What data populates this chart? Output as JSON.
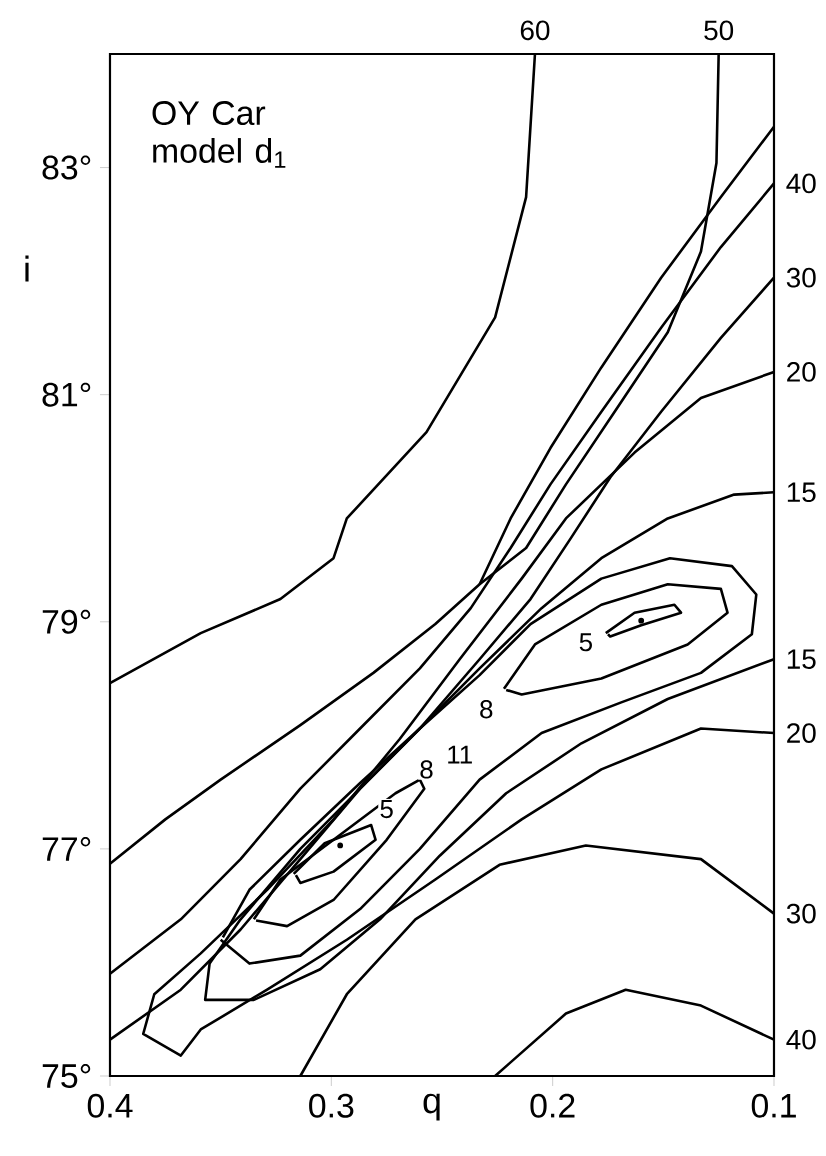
{
  "chart_data": {
    "type": "line",
    "title": "OY Car model d$_{1}$",
    "xlabel": "q",
    "ylabel": "i",
    "xlim": [
      0.4,
      0.1
    ],
    "ylim": [
      75,
      84
    ],
    "xticks": [
      0.4,
      0.3,
      0.2,
      0.1
    ],
    "yticks": [
      {
        "value": 75,
        "label": "75°"
      },
      {
        "value": 77,
        "label": "77°"
      },
      {
        "value": 79,
        "label": "79°"
      },
      {
        "value": 81,
        "label": "81°"
      },
      {
        "value": 83,
        "label": "83°"
      }
    ],
    "series": [
      {
        "color": "#000000",
        "x": [
          0.208,
          0.212,
          0.226,
          0.257,
          0.293,
          0.299,
          0.323,
          0.359,
          0.4
        ],
        "values": [
          84.0,
          82.74,
          81.68,
          80.67,
          79.91,
          79.56,
          79.2,
          78.9,
          78.46
        ]
      },
      {
        "color": "#000000",
        "x": [
          0.125,
          0.126,
          0.133,
          0.148,
          0.172,
          0.194,
          0.212,
          0.233,
          0.253,
          0.281,
          0.314,
          0.35,
          0.375,
          0.4
        ],
        "values": [
          84.0,
          83.04,
          82.26,
          81.55,
          80.85,
          80.21,
          79.65,
          79.33,
          78.98,
          78.55,
          78.09,
          77.61,
          77.26,
          76.87
        ]
      },
      {
        "color": "#000000",
        "x": [
          0.1,
          0.124,
          0.151,
          0.178,
          0.201,
          0.219,
          0.233
        ],
        "values": [
          83.36,
          82.74,
          82.03,
          81.24,
          80.53,
          79.91,
          79.33
        ]
      },
      {
        "color": "#000000",
        "x": [
          0.1,
          0.124,
          0.151,
          0.178,
          0.201,
          0.219,
          0.237,
          0.26,
          0.287,
          0.314,
          0.341,
          0.368,
          0.4
        ],
        "values": [
          82.86,
          82.3,
          81.59,
          80.85,
          80.21,
          79.65,
          79.12,
          78.59,
          78.06,
          77.53,
          76.91,
          76.38,
          75.9
        ]
      },
      {
        "color": "#000000",
        "x": [
          0.1,
          0.124,
          0.151,
          0.174,
          0.192,
          0.21,
          0.233,
          0.26,
          0.287,
          0.314,
          0.341,
          0.368,
          0.4
        ],
        "values": [
          82.03,
          81.5,
          80.85,
          80.27,
          79.73,
          79.2,
          78.67,
          78.06,
          77.53,
          76.91,
          76.29,
          75.76,
          75.32
        ]
      },
      {
        "color": "#000000",
        "x": [
          0.1,
          0.133,
          0.163,
          0.194,
          0.214,
          0.242,
          0.269,
          0.299,
          0.329,
          0.359,
          0.38,
          0.385,
          0.368,
          0.359,
          0.329,
          0.293,
          0.253,
          0.214,
          0.178,
          0.133,
          0.1
        ],
        "values": [
          81.2,
          80.97,
          80.49,
          79.91,
          79.38,
          78.67,
          77.97,
          77.26,
          76.64,
          76.08,
          75.72,
          75.37,
          75.18,
          75.41,
          75.76,
          76.2,
          76.73,
          77.26,
          77.7,
          78.06,
          78.02
        ]
      },
      {
        "color": "#000000",
        "x": [
          0.1,
          0.118,
          0.148,
          0.178,
          0.205,
          0.233,
          0.26,
          0.287,
          0.314,
          0.341,
          0.355,
          0.357,
          0.335,
          0.305,
          0.278,
          0.251,
          0.221,
          0.187,
          0.148,
          0.1
        ],
        "values": [
          80.14,
          80.12,
          79.91,
          79.56,
          79.12,
          78.59,
          78.06,
          77.53,
          77.0,
          76.38,
          75.99,
          75.67,
          75.67,
          75.94,
          76.38,
          76.94,
          77.49,
          77.93,
          78.32,
          78.67
        ]
      },
      {
        "color": "#000000",
        "x": [
          0.35,
          0.337,
          0.314,
          0.287,
          0.26,
          0.233,
          0.205,
          0.169,
          0.133,
          0.11,
          0.108,
          0.119,
          0.147,
          0.178,
          0.21,
          0.233,
          0.26,
          0.287,
          0.314,
          0.337,
          0.349
        ],
        "values": [
          76.2,
          75.99,
          76.06,
          76.47,
          77.0,
          77.61,
          78.02,
          78.29,
          78.55,
          78.89,
          79.24,
          79.49,
          79.56,
          79.38,
          78.98,
          78.53,
          78.06,
          77.58,
          77.08,
          76.64,
          76.22
        ]
      },
      {
        "color": "#000000",
        "x": [
          0.335,
          0.323,
          0.299,
          0.271,
          0.26,
          0.258,
          0.275,
          0.299,
          0.32,
          0.334
        ],
        "values": [
          76.38,
          76.73,
          77.08,
          77.49,
          77.61,
          77.53,
          77.08,
          76.55,
          76.32,
          76.37
        ]
      },
      {
        "color": "#000000",
        "x": [
          0.317,
          0.303,
          0.282,
          0.28,
          0.299,
          0.314,
          0.316
        ],
        "values": [
          76.78,
          77.05,
          77.21,
          77.08,
          76.8,
          76.7,
          76.77
        ]
      },
      {
        "color": "#000000",
        "x": [
          0.222,
          0.208,
          0.178,
          0.148,
          0.124,
          0.121,
          0.139,
          0.178,
          0.214,
          0.221
        ],
        "values": [
          78.41,
          78.8,
          79.15,
          79.33,
          79.29,
          79.08,
          78.8,
          78.5,
          78.36,
          78.4
        ]
      },
      {
        "color": "#000000",
        "x": [
          0.176,
          0.163,
          0.145,
          0.142,
          0.16,
          0.174,
          0.175
        ],
        "values": [
          78.9,
          79.08,
          79.15,
          79.08,
          78.97,
          78.87,
          78.89
        ]
      },
      {
        "color": "#000000",
        "x": [
          0.1,
          0.133,
          0.185,
          0.224,
          0.262,
          0.293,
          0.314
        ],
        "values": [
          76.43,
          76.91,
          77.03,
          76.86,
          76.38,
          75.72,
          75.0
        ]
      },
      {
        "color": "#000000",
        "x": [
          0.1,
          0.133,
          0.167,
          0.194,
          0.226
        ],
        "values": [
          75.32,
          75.62,
          75.76,
          75.55,
          75.0
        ]
      },
      {
        "type": "scatter",
        "color": "#000000",
        "x": [
          0.296,
          0.16
        ],
        "values": [
          77.03,
          79.01
        ]
      }
    ],
    "annotations": [
      {
        "text": "60",
        "x": 0.208,
        "y": 84.0
      },
      {
        "text": "50",
        "x": 0.125,
        "y": 84.0
      },
      {
        "text": "40",
        "x": 0.1,
        "y": 82.86
      },
      {
        "text": "30",
        "x": 0.1,
        "y": 82.03
      },
      {
        "text": "20",
        "x": 0.1,
        "y": 81.2
      },
      {
        "text": "15",
        "x": 0.1,
        "y": 80.14
      },
      {
        "text": "15",
        "x": 0.1,
        "y": 78.67
      },
      {
        "text": "20",
        "x": 0.1,
        "y": 78.02
      },
      {
        "text": "30",
        "x": 0.1,
        "y": 76.43
      },
      {
        "text": "40",
        "x": 0.1,
        "y": 75.32
      },
      {
        "text": "5",
        "x": 0.275,
        "y": 77.35
      },
      {
        "text": "8",
        "x": 0.257,
        "y": 77.7
      },
      {
        "text": "11",
        "x": 0.242,
        "y": 77.83
      },
      {
        "text": "8",
        "x": 0.23,
        "y": 78.23
      },
      {
        "text": "5",
        "x": 0.185,
        "y": 78.82
      }
    ]
  }
}
